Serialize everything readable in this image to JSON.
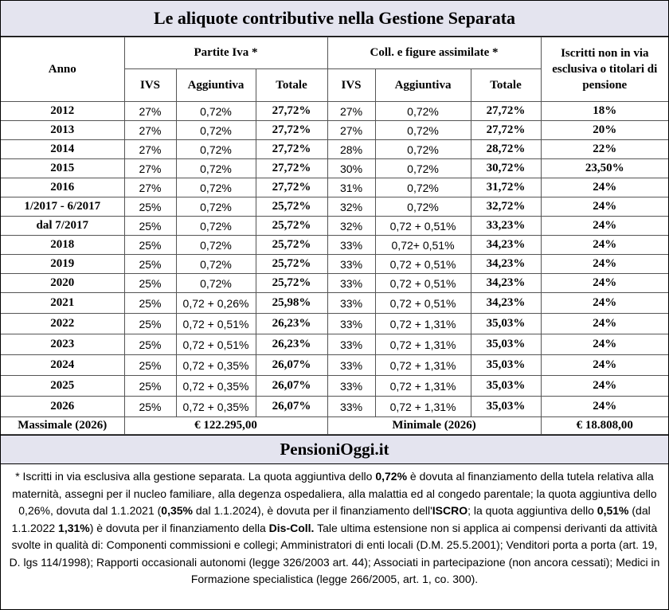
{
  "title": "Le aliquote contributive nella Gestione Separata",
  "table": {
    "header": {
      "anno": "Anno",
      "group1": "Partite Iva *",
      "group2": "Coll. e figure assimilate *",
      "group3": "Iscritti non in via esclusiva o titolari di pensione",
      "sub": [
        "IVS",
        "Aggiuntiva",
        "Totale",
        "IVS",
        "Aggiuntiva",
        "Totale"
      ]
    },
    "rows": [
      [
        "2012",
        "27%",
        "0,72%",
        "27,72%",
        "27%",
        "0,72%",
        "27,72%",
        "18%"
      ],
      [
        "2013",
        "27%",
        "0,72%",
        "27,72%",
        "27%",
        "0,72%",
        "27,72%",
        "20%"
      ],
      [
        "2014",
        "27%",
        "0,72%",
        "27,72%",
        "28%",
        "0,72%",
        "28,72%",
        "22%"
      ],
      [
        "2015",
        "27%",
        "0,72%",
        "27,72%",
        "30%",
        "0,72%",
        "30,72%",
        "23,50%"
      ],
      [
        "2016",
        "27%",
        "0,72%",
        "27,72%",
        "31%",
        "0,72%",
        "31,72%",
        "24%"
      ],
      [
        "1/2017 - 6/2017",
        "25%",
        "0,72%",
        "25,72%",
        "32%",
        "0,72%",
        "32,72%",
        "24%"
      ],
      [
        "dal 7/2017",
        "25%",
        "0,72%",
        "25,72%",
        "32%",
        "0,72 + 0,51%",
        "33,23%",
        "24%"
      ],
      [
        "2018",
        "25%",
        "0,72%",
        "25,72%",
        "33%",
        "0,72+ 0,51%",
        "34,23%",
        "24%"
      ],
      [
        "2019",
        "25%",
        "0,72%",
        "25,72%",
        "33%",
        "0,72 + 0,51%",
        "34,23%",
        "24%"
      ],
      [
        "2020",
        "25%",
        "0,72%",
        "25,72%",
        "33%",
        "0,72 + 0,51%",
        "34,23%",
        "24%"
      ],
      [
        "2021",
        "25%",
        "0,72 + 0,26%",
        "25,98%",
        "33%",
        "0,72 + 0,51%",
        "34,23%",
        "24%"
      ],
      [
        "2022",
        "25%",
        "0,72 + 0,51%",
        "26,23%",
        "33%",
        "0,72 + 1,31%",
        "35,03%",
        "24%"
      ],
      [
        "2023",
        "25%",
        "0,72 + 0,51%",
        "26,23%",
        "33%",
        "0,72 + 1,31%",
        "35,03%",
        "24%"
      ],
      [
        "2024",
        "25%",
        "0,72 + 0,35%",
        "26,07%",
        "33%",
        "0,72 + 1,31%",
        "35,03%",
        "24%"
      ],
      [
        "2025",
        "25%",
        "0,72 + 0,35%",
        "26,07%",
        "33%",
        "0,72 + 1,31%",
        "35,03%",
        "24%"
      ],
      [
        "2026",
        "25%",
        "0,72 + 0,35%",
        "26,07%",
        "33%",
        "0,72 + 1,31%",
        "35,03%",
        "24%"
      ]
    ],
    "footer": [
      "Massimale (2026)",
      "€ 122.295,00",
      "Minimale (2026)",
      "€ 18.808,00"
    ]
  },
  "brand": "PensioniOggi.it",
  "notes": [
    "* Iscritti in via esclusiva alla gestione separata. La quota aggiuntiva dello ",
    "0,72%",
    " è dovuta al finanziamento della tutela relativa alla maternità, assegni per il nucleo familiare, alla degenza ospedaliera, alla malattia ed al congedo parentale; la quota aggiuntiva dello 0,26%, dovuta dal 1.1.2021 (",
    "0,35%",
    " dal 1.1.2024), è dovuta per il finanziamento dell'",
    "ISCRO",
    "; la quota aggiuntiva dello ",
    "0,51%",
    " (dal 1.1.2022 ",
    "1,31%",
    ") è dovuta per il finanziamento della ",
    "Dis-Coll.",
    " Tale ultima estensione non si applica ai compensi derivanti da attività svolte in qualità di:  Componenti commissioni e collegi; Amministratori di enti locali (D.M. 25.5.2001);  Venditori porta a porta (art. 19, D. lgs 114/1998); Rapporti occasionali autonomi (legge 326/2003 art. 44);  Associati in partecipazione (non ancora cessati);  Medici in Formazione specialistica (legge 266/2005, art. 1, co. 300)."
  ]
}
